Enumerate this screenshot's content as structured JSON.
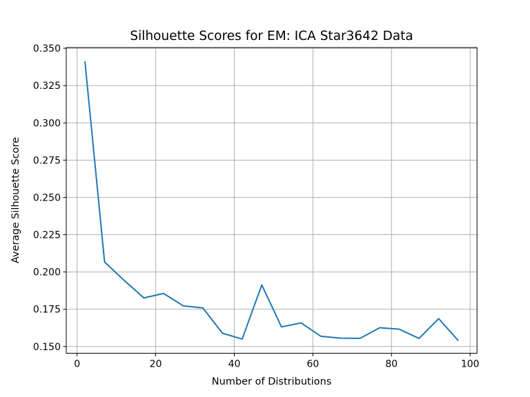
{
  "chart_data": {
    "type": "line",
    "title": "Silhouette Scores for EM: ICA Star3642 Data",
    "xlabel": "Number of Distributions",
    "ylabel": "Average Silhouette Score",
    "xlim": [
      -2.75,
      101.75
    ],
    "ylim": [
      0.1455,
      0.3505
    ],
    "xticks": [
      0,
      20,
      40,
      60,
      80,
      100
    ],
    "xtick_labels": [
      "0",
      "20",
      "40",
      "60",
      "80",
      "100"
    ],
    "yticks": [
      0.15,
      0.175,
      0.2,
      0.225,
      0.25,
      0.275,
      0.3,
      0.325,
      0.35
    ],
    "ytick_labels": [
      "0.150",
      "0.175",
      "0.200",
      "0.225",
      "0.250",
      "0.275",
      "0.300",
      "0.325",
      "0.350"
    ],
    "grid": true,
    "series": [
      {
        "color": "#1f77b4",
        "x": [
          2,
          7,
          12,
          17,
          22,
          27,
          32,
          37,
          42,
          47,
          52,
          57,
          62,
          67,
          72,
          77,
          82,
          87,
          92,
          97
        ],
        "values": [
          0.3413,
          0.2067,
          0.1943,
          0.1826,
          0.1856,
          0.1773,
          0.1759,
          0.1589,
          0.155,
          0.1913,
          0.1632,
          0.1658,
          0.1569,
          0.1556,
          0.1555,
          0.1626,
          0.1616,
          0.1554,
          0.1687,
          0.1539
        ]
      }
    ]
  }
}
